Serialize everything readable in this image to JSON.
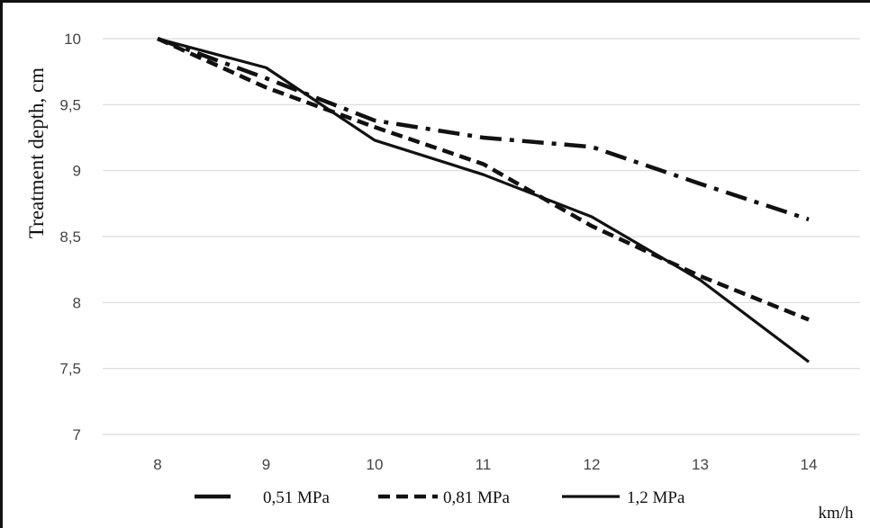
{
  "chart_data": {
    "type": "line",
    "ylabel": "Treatment depth, cm",
    "x_unit_label": "km/h",
    "categories": [
      "8",
      "9",
      "10",
      "11",
      "12",
      "13",
      "14"
    ],
    "x": [
      8,
      9,
      10,
      11,
      12,
      13,
      14
    ],
    "ylim": [
      7,
      10
    ],
    "yticks": [
      "7",
      "7,5",
      "8",
      "8,5",
      "9",
      "9,5",
      "10"
    ],
    "ytick_values": [
      7,
      7.5,
      8,
      8.5,
      9,
      9.5,
      10
    ],
    "grid": "horizontal",
    "legend_position": "bottom",
    "series": [
      {
        "name": "0,51 MPa",
        "style": "dash-dot",
        "values": [
          10.0,
          9.7,
          9.38,
          9.25,
          9.18,
          8.9,
          8.63
        ]
      },
      {
        "name": "0,81 MPa",
        "style": "dashed",
        "values": [
          10.0,
          9.63,
          9.33,
          9.05,
          8.58,
          8.2,
          7.87
        ]
      },
      {
        "name": "1,2 MPa",
        "style": "solid",
        "values": [
          10.0,
          9.78,
          9.23,
          8.97,
          8.65,
          8.17,
          7.55
        ]
      }
    ],
    "colors": {
      "line": "#111111",
      "grid": "#d9d9d9",
      "tick_text": "#444444"
    }
  }
}
